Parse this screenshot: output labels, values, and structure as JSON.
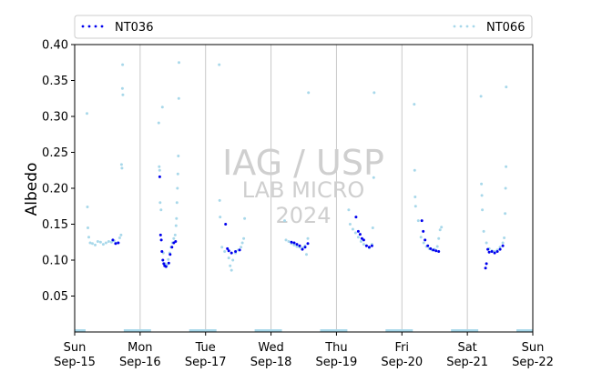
{
  "chart_data": {
    "type": "scatter",
    "ylabel": "Albedo",
    "ylim": [
      0.0,
      0.4
    ],
    "xlim": [
      "2024-09-15 00:00",
      "2024-09-22 00:00"
    ],
    "yticks": [
      "0.05",
      "0.10",
      "0.15",
      "0.20",
      "0.25",
      "0.30",
      "0.35",
      "0.40"
    ],
    "xticks": [
      {
        "day": "Sun",
        "date": "Sep-15"
      },
      {
        "day": "Mon",
        "date": "Sep-16"
      },
      {
        "day": "Tue",
        "date": "Sep-17"
      },
      {
        "day": "Wed",
        "date": "Sep-18"
      },
      {
        "day": "Thu",
        "date": "Sep-19"
      },
      {
        "day": "Fri",
        "date": "Sep-20"
      },
      {
        "day": "Sat",
        "date": "Sep-21"
      },
      {
        "day": "Sun",
        "date": "Sep-22"
      }
    ],
    "vertical_grid": true,
    "legend_position": "top",
    "series": [
      {
        "name": "NT036",
        "color": "#0000ee",
        "points": [
          [
            "2024-09-15 14:00",
            0.128
          ],
          [
            "2024-09-15 15:00",
            0.123
          ],
          [
            "2024-09-15 16:00",
            0.124
          ],
          [
            "2024-09-16 07:12",
            0.216
          ],
          [
            "2024-09-16 07:30",
            0.135
          ],
          [
            "2024-09-16 07:45",
            0.128
          ],
          [
            "2024-09-16 08:00",
            0.112
          ],
          [
            "2024-09-16 08:20",
            0.1
          ],
          [
            "2024-09-16 08:40",
            0.095
          ],
          [
            "2024-09-16 09:00",
            0.092
          ],
          [
            "2024-09-16 09:30",
            0.091
          ],
          [
            "2024-09-16 10:30",
            0.096
          ],
          [
            "2024-09-16 11:00",
            0.108
          ],
          [
            "2024-09-16 11:40",
            0.118
          ],
          [
            "2024-09-16 12:20",
            0.124
          ],
          [
            "2024-09-16 13:00",
            0.126
          ],
          [
            "2024-09-17 07:20",
            0.15
          ],
          [
            "2024-09-17 08:00",
            0.116
          ],
          [
            "2024-09-17 08:30",
            0.113
          ],
          [
            "2024-09-17 09:30",
            0.11
          ],
          [
            "2024-09-17 11:00",
            0.112
          ],
          [
            "2024-09-17 12:30",
            0.114
          ],
          [
            "2024-09-18 07:30",
            0.125
          ],
          [
            "2024-09-18 08:30",
            0.124
          ],
          [
            "2024-09-18 09:30",
            0.122
          ],
          [
            "2024-09-18 10:30",
            0.12
          ],
          [
            "2024-09-18 11:30",
            0.115
          ],
          [
            "2024-09-18 12:30",
            0.118
          ],
          [
            "2024-09-18 13:30",
            0.123
          ],
          [
            "2024-09-19 07:10",
            0.16
          ],
          [
            "2024-09-19 08:00",
            0.14
          ],
          [
            "2024-09-19 08:40",
            0.136
          ],
          [
            "2024-09-19 09:20",
            0.13
          ],
          [
            "2024-09-19 10:00",
            0.128
          ],
          [
            "2024-09-19 11:00",
            0.12
          ],
          [
            "2024-09-19 12:00",
            0.118
          ],
          [
            "2024-09-19 13:00",
            0.12
          ],
          [
            "2024-09-20 07:20",
            0.155
          ],
          [
            "2024-09-20 07:50",
            0.14
          ],
          [
            "2024-09-20 08:30",
            0.128
          ],
          [
            "2024-09-20 09:30",
            0.12
          ],
          [
            "2024-09-20 10:30",
            0.116
          ],
          [
            "2024-09-20 11:30",
            0.114
          ],
          [
            "2024-09-20 12:30",
            0.113
          ],
          [
            "2024-09-20 13:30",
            0.112
          ],
          [
            "2024-09-21 06:40",
            0.089
          ],
          [
            "2024-09-21 07:00",
            0.095
          ],
          [
            "2024-09-21 07:30",
            0.115
          ],
          [
            "2024-09-21 08:00",
            0.111
          ],
          [
            "2024-09-21 09:00",
            0.112
          ],
          [
            "2024-09-21 10:00",
            0.11
          ],
          [
            "2024-09-21 11:00",
            0.112
          ],
          [
            "2024-09-21 12:00",
            0.115
          ],
          [
            "2024-09-21 13:00",
            0.12
          ]
        ]
      },
      {
        "name": "NT066",
        "color": "#a8d8ea",
        "points": [
          [
            "2024-09-15 04:30",
            0.304
          ],
          [
            "2024-09-15 04:40",
            0.174
          ],
          [
            "2024-09-15 04:50",
            0.145
          ],
          [
            "2024-09-15 05:10",
            0.132
          ],
          [
            "2024-09-15 05:40",
            0.124
          ],
          [
            "2024-09-15 06:30",
            0.123
          ],
          [
            "2024-09-15 07:30",
            0.121
          ],
          [
            "2024-09-15 08:30",
            0.126
          ],
          [
            "2024-09-15 09:30",
            0.125
          ],
          [
            "2024-09-15 10:30",
            0.122
          ],
          [
            "2024-09-15 11:30",
            0.124
          ],
          [
            "2024-09-15 12:30",
            0.126
          ],
          [
            "2024-09-15 13:30",
            0.125
          ],
          [
            "2024-09-15 14:30",
            0.127
          ],
          [
            "2024-09-15 15:30",
            0.124
          ],
          [
            "2024-09-15 16:30",
            0.131
          ],
          [
            "2024-09-15 17:00",
            0.135
          ],
          [
            "2024-09-15 17:10",
            0.233
          ],
          [
            "2024-09-15 17:20",
            0.228
          ],
          [
            "2024-09-15 17:30",
            0.339
          ],
          [
            "2024-09-15 17:35",
            0.372
          ],
          [
            "2024-09-15 17:40",
            0.33
          ],
          [
            "2024-09-16 06:50",
            0.291
          ],
          [
            "2024-09-16 07:00",
            0.23
          ],
          [
            "2024-09-16 07:10",
            0.225
          ],
          [
            "2024-09-16 07:20",
            0.18
          ],
          [
            "2024-09-16 07:40",
            0.17
          ],
          [
            "2024-09-16 08:10",
            0.313
          ],
          [
            "2024-09-16 08:30",
            0.11
          ],
          [
            "2024-09-16 09:10",
            0.095
          ],
          [
            "2024-09-16 09:50",
            0.093
          ],
          [
            "2024-09-16 10:20",
            0.101
          ],
          [
            "2024-09-16 10:50",
            0.11
          ],
          [
            "2024-09-16 11:20",
            0.118
          ],
          [
            "2024-09-16 11:50",
            0.124
          ],
          [
            "2024-09-16 12:20",
            0.13
          ],
          [
            "2024-09-16 12:50",
            0.135
          ],
          [
            "2024-09-16 13:10",
            0.148
          ],
          [
            "2024-09-16 13:20",
            0.158
          ],
          [
            "2024-09-16 13:30",
            0.18
          ],
          [
            "2024-09-16 13:40",
            0.2
          ],
          [
            "2024-09-16 13:50",
            0.22
          ],
          [
            "2024-09-16 14:00",
            0.245
          ],
          [
            "2024-09-16 14:10",
            0.325
          ],
          [
            "2024-09-16 14:15",
            0.375
          ],
          [
            "2024-09-17 05:00",
            0.372
          ],
          [
            "2024-09-17 05:10",
            0.183
          ],
          [
            "2024-09-17 05:20",
            0.16
          ],
          [
            "2024-09-17 06:00",
            0.118
          ],
          [
            "2024-09-17 07:00",
            0.112
          ],
          [
            "2024-09-17 08:30",
            0.103
          ],
          [
            "2024-09-17 09:00",
            0.092
          ],
          [
            "2024-09-17 09:30",
            0.086
          ],
          [
            "2024-09-17 10:00",
            0.1
          ],
          [
            "2024-09-17 11:00",
            0.11
          ],
          [
            "2024-09-17 12:00",
            0.114
          ],
          [
            "2024-09-17 13:00",
            0.118
          ],
          [
            "2024-09-17 13:30",
            0.124
          ],
          [
            "2024-09-17 14:00",
            0.13
          ],
          [
            "2024-09-17 14:20",
            0.158
          ],
          [
            "2024-09-18 05:00",
            0.155
          ],
          [
            "2024-09-18 05:30",
            0.128
          ],
          [
            "2024-09-18 06:30",
            0.126
          ],
          [
            "2024-09-18 07:30",
            0.123
          ],
          [
            "2024-09-18 08:30",
            0.121
          ],
          [
            "2024-09-18 09:30",
            0.119
          ],
          [
            "2024-09-18 10:30",
            0.118
          ],
          [
            "2024-09-18 11:30",
            0.117
          ],
          [
            "2024-09-18 12:30",
            0.12
          ],
          [
            "2024-09-18 13:00",
            0.108
          ],
          [
            "2024-09-18 13:30",
            0.13
          ],
          [
            "2024-09-18 13:45",
            0.333
          ],
          [
            "2024-09-19 04:30",
            0.17
          ],
          [
            "2024-09-19 05:00",
            0.15
          ],
          [
            "2024-09-19 06:00",
            0.143
          ],
          [
            "2024-09-19 07:00",
            0.138
          ],
          [
            "2024-09-19 08:00",
            0.132
          ],
          [
            "2024-09-19 09:00",
            0.126
          ],
          [
            "2024-09-19 10:00",
            0.122
          ],
          [
            "2024-09-19 11:00",
            0.12
          ],
          [
            "2024-09-19 12:00",
            0.117
          ],
          [
            "2024-09-19 13:00",
            0.122
          ],
          [
            "2024-09-19 13:20",
            0.145
          ],
          [
            "2024-09-19 13:40",
            0.215
          ],
          [
            "2024-09-19 13:50",
            0.333
          ],
          [
            "2024-09-20 04:30",
            0.317
          ],
          [
            "2024-09-20 04:40",
            0.225
          ],
          [
            "2024-09-20 04:50",
            0.188
          ],
          [
            "2024-09-20 05:00",
            0.175
          ],
          [
            "2024-09-20 06:00",
            0.155
          ],
          [
            "2024-09-20 07:00",
            0.132
          ],
          [
            "2024-09-20 08:00",
            0.124
          ],
          [
            "2024-09-20 09:00",
            0.119
          ],
          [
            "2024-09-20 10:00",
            0.116
          ],
          [
            "2024-09-20 11:00",
            0.114
          ],
          [
            "2024-09-20 12:00",
            0.115
          ],
          [
            "2024-09-20 13:00",
            0.119
          ],
          [
            "2024-09-20 13:30",
            0.13
          ],
          [
            "2024-09-20 14:00",
            0.142
          ],
          [
            "2024-09-20 14:30",
            0.146
          ],
          [
            "2024-09-21 05:00",
            0.328
          ],
          [
            "2024-09-21 05:10",
            0.206
          ],
          [
            "2024-09-21 05:20",
            0.19
          ],
          [
            "2024-09-21 05:30",
            0.17
          ],
          [
            "2024-09-21 06:00",
            0.14
          ],
          [
            "2024-09-21 07:00",
            0.124
          ],
          [
            "2024-09-21 08:00",
            0.116
          ],
          [
            "2024-09-21 09:00",
            0.113
          ],
          [
            "2024-09-21 10:00",
            0.112
          ],
          [
            "2024-09-21 11:00",
            0.114
          ],
          [
            "2024-09-21 12:00",
            0.118
          ],
          [
            "2024-09-21 13:00",
            0.124
          ],
          [
            "2024-09-21 13:30",
            0.131
          ],
          [
            "2024-09-21 13:50",
            0.165
          ],
          [
            "2024-09-21 14:00",
            0.2
          ],
          [
            "2024-09-21 14:10",
            0.23
          ],
          [
            "2024-09-21 14:15",
            0.341
          ]
        ]
      }
    ],
    "night_segments": [
      [
        "2024-09-15 00:00",
        "2024-09-15 04:00"
      ],
      [
        "2024-09-15 18:00",
        "2024-09-16 04:00"
      ],
      [
        "2024-09-16 18:00",
        "2024-09-17 04:00"
      ],
      [
        "2024-09-17 18:00",
        "2024-09-18 04:00"
      ],
      [
        "2024-09-18 18:00",
        "2024-09-19 04:00"
      ],
      [
        "2024-09-19 18:00",
        "2024-09-20 04:00"
      ],
      [
        "2024-09-20 18:00",
        "2024-09-21 04:00"
      ],
      [
        "2024-09-21 18:00",
        "2024-09-22 00:00"
      ]
    ]
  },
  "watermark": {
    "line1": "IAG / USP",
    "line2": "LAB MICRO",
    "line3": "2024"
  }
}
